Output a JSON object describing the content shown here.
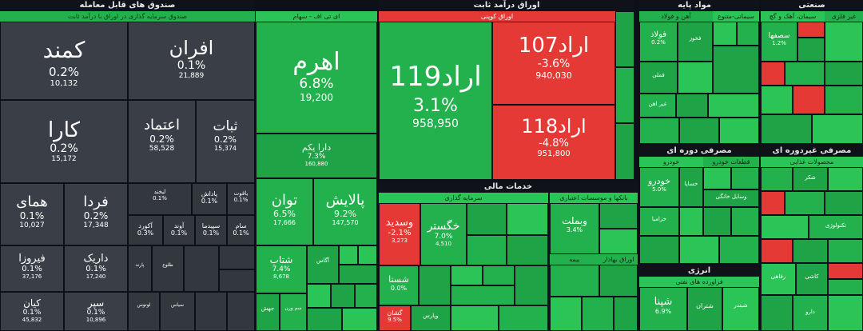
{
  "sections": {
    "funds": {
      "title": "صندوق های قابل معامله",
      "subtitle": "صندوق سرمایه گذاری در اوراق با درآمد ثابت"
    },
    "etf": {
      "subtitle": "ای تی اف - سهام"
    },
    "fixed": {
      "title": "اوراق درآمد ثابت",
      "subtitle": "اوراق کوپنی"
    },
    "base": {
      "title": "مواد پایه",
      "sub1": "آهن و فولاد",
      "sub2": "سیمانی-متنوع"
    },
    "industrial": {
      "title": "صنعتی",
      "sub1": "سیمان، آهک و گچ",
      "sub2": "غیر فلزی"
    },
    "cyclical": {
      "title": "مصرفی دوره ای",
      "sub1": "خودرو",
      "sub2": "قطعات خودرو"
    },
    "noncyclical": {
      "title": "مصرفی غیردوره ای",
      "sub1": "محصولات غذایی"
    },
    "financial": {
      "title": "خدمات مالی",
      "sub1": "سرمایه گذاری",
      "sub2": "بانکها و موسسات اعتباری",
      "sub3": "اوراق بهادار",
      "sub4": "بیمه"
    },
    "energy": {
      "title": "انرژی",
      "sub1": "فراورده های نفتی"
    }
  },
  "funds_tiles": [
    {
      "name": "کمند",
      "pct": "0.2%",
      "vol": "10,132"
    },
    {
      "name": "افران",
      "pct": "0.1%",
      "vol": "21,889"
    },
    {
      "name": "کارا",
      "pct": "0.2%",
      "vol": "15,172"
    },
    {
      "name": "اعتماد",
      "pct": "0.2%",
      "vol": "58,528"
    },
    {
      "name": "ثبات",
      "pct": "0.2%",
      "vol": "15,374"
    },
    {
      "name": "همای",
      "pct": "0.1%",
      "vol": "10,027"
    },
    {
      "name": "فردا",
      "pct": "0.2%",
      "vol": "17,348"
    },
    {
      "name": "لبخند",
      "pct": "0.1%"
    },
    {
      "name": "پاداش",
      "pct": "0.1%"
    },
    {
      "name": "یاقوت",
      "pct": "0.1%"
    },
    {
      "name": "آکورد",
      "pct": "0.3%"
    },
    {
      "name": "آوند",
      "pct": "0.1%"
    },
    {
      "name": "سپیدما",
      "pct": "0.1%"
    },
    {
      "name": "سام",
      "pct": "0.1%"
    },
    {
      "name": "فیروزا",
      "pct": "0.1%",
      "vol": "37,176"
    },
    {
      "name": "داریک",
      "pct": "0.1%",
      "vol": "17,240"
    },
    {
      "name": "پارند",
      "pct": ""
    },
    {
      "name": "طلوع",
      "pct": ""
    },
    {
      "name": "کیان",
      "pct": "0.1%",
      "vol": "45,832"
    },
    {
      "name": "سپر",
      "pct": "0.1%",
      "vol": "10,896"
    },
    {
      "name": "لوتوس",
      "pct": ""
    },
    {
      "name": "سیاس",
      "pct": ""
    }
  ],
  "etf_tiles": [
    {
      "name": "اهرم",
      "pct": "6.8%",
      "vol": "19,200"
    },
    {
      "name": "دارا یکم",
      "pct": "7.3%",
      "vol": "160,880"
    },
    {
      "name": "توان",
      "pct": "6.5%",
      "vol": "17,666"
    },
    {
      "name": "پالایش",
      "pct": "9.2%",
      "vol": "147,570"
    },
    {
      "name": "شتاب",
      "pct": "7.4%",
      "vol": "8,678"
    },
    {
      "name": "آگاس",
      "pct": ""
    },
    {
      "name": "جهش",
      "pct": ""
    },
    {
      "name": "سم ورن",
      "pct": ""
    }
  ],
  "fixed_tiles": [
    {
      "name": "اراد119",
      "pct": "3.1%",
      "vol": "958,950"
    },
    {
      "name": "اراد107",
      "pct": "-3.6%",
      "vol": "940,030"
    },
    {
      "name": "اراد118",
      "pct": "-4.8%",
      "vol": "951,800"
    }
  ],
  "financial_tiles": [
    {
      "name": "وسدید",
      "pct": "-2.1%",
      "vol": "3,273"
    },
    {
      "name": "خگستر",
      "pct": "7.0%",
      "vol": "4,510"
    },
    {
      "name": "شستا",
      "pct": "0.0%"
    },
    {
      "name": "وبملت",
      "pct": "3.4%"
    },
    {
      "name": "وپارس",
      "pct": ""
    },
    {
      "name": "گشان",
      "pct": "9.5%"
    }
  ],
  "base_tiles": [
    {
      "name": "فولاد",
      "pct": "0.2%"
    },
    {
      "name": "فخوز",
      "pct": ""
    },
    {
      "name": "فملی",
      "pct": ""
    },
    {
      "name": "غیر اهن",
      "pct": ""
    }
  ],
  "cyclical_tiles": [
    {
      "name": "خودرو",
      "pct": "5.0%"
    },
    {
      "name": "خساپا",
      "pct": ""
    },
    {
      "name": "خزامیا",
      "pct": ""
    },
    {
      "name": "وسایل خانگی",
      "pct": ""
    }
  ],
  "energy_tiles": [
    {
      "name": "شپنا",
      "pct": "6.9%"
    },
    {
      "name": "شتران",
      "pct": ""
    },
    {
      "name": "شبندر",
      "pct": ""
    }
  ],
  "industrial_tiles": [
    {
      "name": "سصفها",
      "pct": "1.2%"
    },
    {
      "name": "رفاهی",
      "pct": ""
    },
    {
      "name": "کاشی",
      "pct": ""
    }
  ],
  "noncyclical_tiles": [
    {
      "name": "شکر",
      "pct": ""
    },
    {
      "name": "تکنولوژی",
      "pct": ""
    },
    {
      "name": "دارو",
      "pct": ""
    }
  ]
}
